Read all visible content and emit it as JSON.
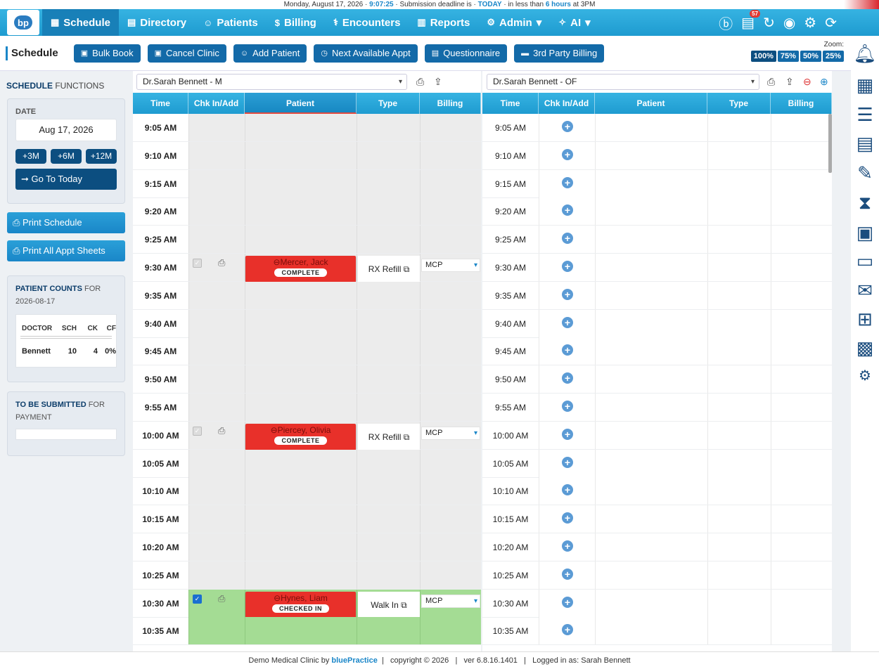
{
  "topstrip": {
    "date": "Monday, August 17, 2026 · ",
    "time": "9:07:25",
    "mid": " · Submission deadline is · ",
    "today": "TODAY",
    "rest1": " · in less than ",
    "hours": "6 hours",
    "rest2": " at 3PM"
  },
  "nav": {
    "logo": "bp",
    "items": [
      {
        "label": "Schedule",
        "icon": "calendar-icon",
        "glyph": "▦"
      },
      {
        "label": "Directory",
        "icon": "book-icon",
        "glyph": "▤"
      },
      {
        "label": "Patients",
        "icon": "users-icon",
        "glyph": "☺"
      },
      {
        "label": "Billing",
        "icon": "dollar-icon",
        "glyph": "$"
      },
      {
        "label": "Encounters",
        "icon": "stethoscope-icon",
        "glyph": "⚕"
      },
      {
        "label": "Reports",
        "icon": "chart-icon",
        "glyph": "▥"
      },
      {
        "label": "Admin",
        "icon": "gear-icon",
        "glyph": "⚙"
      },
      {
        "label": "AI",
        "icon": "sparkle-icon",
        "glyph": "✧"
      }
    ],
    "notif_count": "57"
  },
  "toolbar": {
    "title": "Schedule",
    "buttons": [
      "Bulk Book",
      "Cancel Clinic",
      "Add Patient",
      "Next Available Appt",
      "Questionnaire",
      "3rd Party Billing"
    ],
    "zoom_label": "Zoom:",
    "zoom": [
      "100%",
      "75%",
      "50%",
      "25%"
    ]
  },
  "left": {
    "sec_bold": "SCHEDULE",
    "sec_rest": " FUNCTIONS",
    "date_label": "DATE",
    "date_value": "Aug 17, 2026",
    "range_btns": [
      "+3M",
      "+6M",
      "+12M"
    ],
    "go_today": "➞ Go To Today",
    "print_schedule": "Print Schedule",
    "print_all": "Print All Appt Sheets",
    "counts_bold": "PATIENT COUNTS",
    "counts_rest": " FOR",
    "counts_date": "2026-08-17",
    "count_headers": [
      "DOCTOR",
      "SCH",
      "CK",
      "CF"
    ],
    "count_row": [
      "Bennett",
      "10",
      "4",
      "0%"
    ],
    "submit_bold": "TO BE SUBMITTED",
    "submit_rest": " FOR",
    "submit_rest2": "PAYMENT"
  },
  "col1": {
    "provider": "Dr.Sarah Bennett - M",
    "headers": [
      "Time",
      "Chk In/Add",
      "Patient",
      "Type",
      "Billing"
    ]
  },
  "col2": {
    "provider": "Dr.Sarah Bennett - OF",
    "headers": [
      "Time",
      "Chk In/Add",
      "Patient",
      "Type",
      "Billing"
    ]
  },
  "times": [
    "9:05 AM",
    "9:10 AM",
    "9:15 AM",
    "9:20 AM",
    "9:25 AM",
    "9:30 AM",
    "9:35 AM",
    "9:40 AM",
    "9:45 AM",
    "9:50 AM",
    "9:55 AM",
    "10:00 AM",
    "10:05 AM",
    "10:10 AM",
    "10:15 AM",
    "10:20 AM",
    "10:25 AM",
    "10:30 AM",
    "10:35 AM"
  ],
  "appointments": [
    {
      "name": "Mercer, Jack",
      "status": "COMPLETE",
      "type": "RX Refill",
      "billing": "MCP"
    },
    {
      "name": "Piercey, Olivia",
      "status": "COMPLETE",
      "type": "RX Refill",
      "billing": "MCP"
    },
    {
      "name": "Hynes, Liam",
      "status": "CHECKED IN",
      "type": "Walk In",
      "billing": "MCP"
    }
  ],
  "footer": {
    "clinic": "Demo Medical Clinic by ",
    "brand": "bluePractice",
    "rest": "  |   copyright © 2026   |   ver 6.8.16.1401   |   Logged in as: Sarah Bennett"
  }
}
